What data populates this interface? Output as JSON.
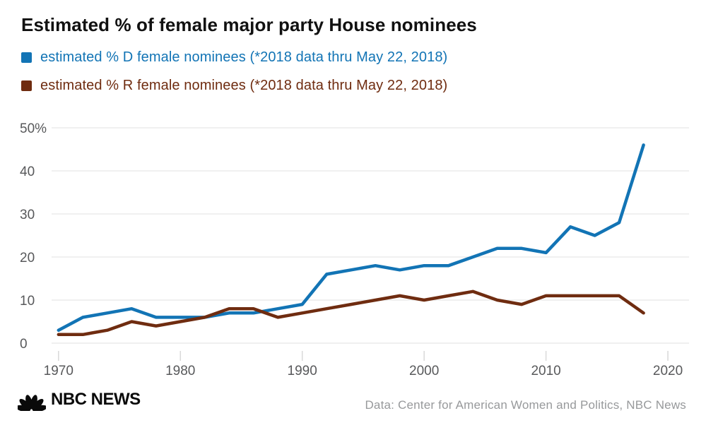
{
  "header": {
    "title": "Estimated % of female major party House nominees"
  },
  "legend": [
    {
      "label": "estimated % D female nominees (*2018 data thru May 22, 2018)",
      "color": "#1274B5"
    },
    {
      "label": "estimated % R female nominees (*2018 data thru May 22, 2018)",
      "color": "#6F2C10"
    }
  ],
  "chart_data": {
    "type": "line",
    "title": "Estimated % of female major party House nominees",
    "x": [
      1970,
      1972,
      1974,
      1976,
      1978,
      1980,
      1982,
      1984,
      1986,
      1988,
      1990,
      1992,
      1994,
      1996,
      1998,
      2000,
      2002,
      2004,
      2006,
      2008,
      2010,
      2012,
      2014,
      2016,
      2018
    ],
    "series": [
      {
        "name": "estimated % D female nominees (*2018 data thru May 22, 2018)",
        "color": "#1274B5",
        "values": [
          3,
          6,
          7,
          8,
          6,
          6,
          6,
          7,
          7,
          8,
          9,
          16,
          17,
          18,
          17,
          18,
          18,
          20,
          22,
          22,
          21,
          27,
          25,
          28,
          46
        ]
      },
      {
        "name": "estimated % R female nominees (*2018 data thru May 22, 2018)",
        "color": "#6F2C10",
        "values": [
          2,
          2,
          3,
          5,
          4,
          5,
          6,
          8,
          8,
          6,
          7,
          8,
          9,
          10,
          11,
          10,
          11,
          12,
          10,
          9,
          11,
          11,
          11,
          11,
          7
        ]
      }
    ],
    "xlabel": "",
    "ylabel": "",
    "ylim": [
      0,
      50
    ],
    "xlim": [
      1969.4,
      2021.8
    ],
    "yticks": [
      {
        "v": 0,
        "label": "0"
      },
      {
        "v": 10,
        "label": "10"
      },
      {
        "v": 20,
        "label": "20"
      },
      {
        "v": 30,
        "label": "30"
      },
      {
        "v": 40,
        "label": "40"
      },
      {
        "v": 50,
        "label": "50%"
      }
    ],
    "xticks": [
      {
        "v": 1970,
        "label": "1970"
      },
      {
        "v": 1980,
        "label": "1980"
      },
      {
        "v": 1990,
        "label": "1990"
      },
      {
        "v": 2000,
        "label": "2000"
      },
      {
        "v": 2010,
        "label": "2010"
      },
      {
        "v": 2020,
        "label": "2020"
      }
    ],
    "grid": "horizontal",
    "legend_position": "top-left"
  },
  "footer": {
    "logo_text": "NBC NEWS",
    "attribution": "Data: Center for American Women and Politics, NBC News"
  },
  "colors": {
    "grid": "#e7e7e7",
    "tick": "#d9d9d9",
    "axis_label": "#58595b",
    "attribution": "#97999b"
  }
}
